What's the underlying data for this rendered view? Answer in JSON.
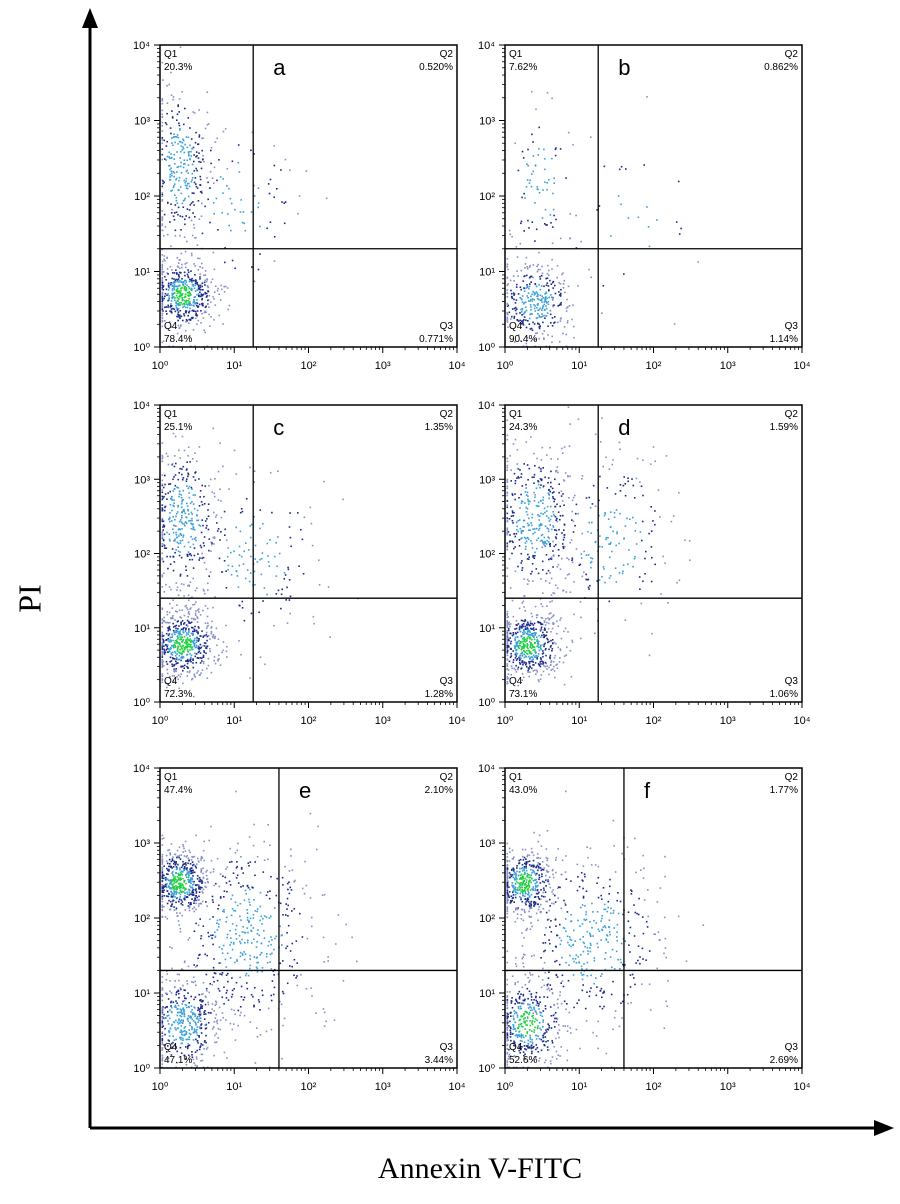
{
  "axis_labels": {
    "y": "PI",
    "x": "Annexin V-FITC"
  },
  "colors": {
    "density_low": "#1a2a8a",
    "density_mid": "#3aa0d8",
    "density_high": "#20d040",
    "sparse_dot": "#8890c8"
  },
  "chart_data": [
    {
      "type": "scatter",
      "panel_label": "a",
      "xscale": "log",
      "yscale": "log",
      "xlim": [
        1,
        10000
      ],
      "ylim": [
        1,
        10000
      ],
      "x_ticks": [
        "10⁰",
        "10¹",
        "10²",
        "10³",
        "10⁴"
      ],
      "y_ticks": [
        "10⁰",
        "10¹",
        "10²",
        "10³",
        "10⁴"
      ],
      "gate": {
        "x": 18,
        "y": 20
      },
      "quadrants": {
        "Q1": "20.3%",
        "Q2": "0.520%",
        "Q3": "0.771%",
        "Q4": "78.4%"
      },
      "quadrant_names": {
        "Q1": "Q1",
        "Q2": "Q2",
        "Q3": "Q3",
        "Q4": "Q4"
      },
      "populations": [
        {
          "x": 2,
          "y": 5,
          "n": 520,
          "sx": 0.22,
          "sy": 0.22,
          "hot": true
        },
        {
          "x": 1.8,
          "y": 250,
          "n": 300,
          "sx": 0.2,
          "sy": 0.55,
          "hot": false
        },
        {
          "x": 12,
          "y": 80,
          "n": 90,
          "sx": 0.4,
          "sy": 0.6,
          "hot": false
        }
      ]
    },
    {
      "type": "scatter",
      "panel_label": "b",
      "xscale": "log",
      "yscale": "log",
      "xlim": [
        1,
        10000
      ],
      "ylim": [
        1,
        10000
      ],
      "x_ticks": [
        "10⁰",
        "10¹",
        "10²",
        "10³",
        "10⁴"
      ],
      "y_ticks": [
        "10⁰",
        "10¹",
        "10²",
        "10³",
        "10⁴"
      ],
      "gate": {
        "x": 18,
        "y": 20
      },
      "quadrants": {
        "Q1": "7.62%",
        "Q2": "0.862%",
        "Q3": "1.14%",
        "Q4": "90.4%"
      },
      "quadrant_names": {
        "Q1": "Q1",
        "Q2": "Q2",
        "Q3": "Q3",
        "Q4": "Q4"
      },
      "populations": [
        {
          "x": 2.5,
          "y": 4,
          "n": 340,
          "sx": 0.25,
          "sy": 0.25,
          "hot": false
        },
        {
          "x": 3,
          "y": 150,
          "n": 90,
          "sx": 0.25,
          "sy": 0.55,
          "hot": false
        },
        {
          "x": 60,
          "y": 40,
          "n": 30,
          "sx": 0.55,
          "sy": 0.6,
          "hot": false
        }
      ]
    },
    {
      "type": "scatter",
      "panel_label": "c",
      "xscale": "log",
      "yscale": "log",
      "xlim": [
        1,
        10000
      ],
      "ylim": [
        1,
        10000
      ],
      "x_ticks": [
        "10⁰",
        "10¹",
        "10²",
        "10³",
        "10⁴"
      ],
      "y_ticks": [
        "10⁰",
        "10¹",
        "10²",
        "10³",
        "10⁴"
      ],
      "gate": {
        "x": 18,
        "y": 25
      },
      "quadrants": {
        "Q1": "25.1%",
        "Q2": "1.35%",
        "Q3": "1.28%",
        "Q4": "72.3%"
      },
      "quadrant_names": {
        "Q1": "Q1",
        "Q2": "Q2",
        "Q3": "Q3",
        "Q4": "Q4"
      },
      "populations": [
        {
          "x": 2,
          "y": 6,
          "n": 560,
          "sx": 0.22,
          "sy": 0.22,
          "hot": true
        },
        {
          "x": 2,
          "y": 300,
          "n": 380,
          "sx": 0.25,
          "sy": 0.5,
          "hot": false
        },
        {
          "x": 20,
          "y": 100,
          "n": 150,
          "sx": 0.45,
          "sy": 0.6,
          "hot": false
        }
      ]
    },
    {
      "type": "scatter",
      "panel_label": "d",
      "xscale": "log",
      "yscale": "log",
      "xlim": [
        1,
        10000
      ],
      "ylim": [
        1,
        10000
      ],
      "x_ticks": [
        "10⁰",
        "10¹",
        "10²",
        "10³",
        "10⁴"
      ],
      "y_ticks": [
        "10⁰",
        "10¹",
        "10²",
        "10³",
        "10⁴"
      ],
      "gate": {
        "x": 18,
        "y": 25
      },
      "quadrants": {
        "Q1": "24.3%",
        "Q2": "1.59%",
        "Q3": "1.06%",
        "Q4": "73.1%"
      },
      "quadrant_names": {
        "Q1": "Q1",
        "Q2": "Q2",
        "Q3": "Q3",
        "Q4": "Q4"
      },
      "populations": [
        {
          "x": 2,
          "y": 6,
          "n": 560,
          "sx": 0.22,
          "sy": 0.22,
          "hot": true
        },
        {
          "x": 2.5,
          "y": 300,
          "n": 420,
          "sx": 0.28,
          "sy": 0.5,
          "hot": false
        },
        {
          "x": 25,
          "y": 150,
          "n": 200,
          "sx": 0.45,
          "sy": 0.6,
          "hot": false
        }
      ]
    },
    {
      "type": "scatter",
      "panel_label": "e",
      "xscale": "log",
      "yscale": "log",
      "xlim": [
        1,
        10000
      ],
      "ylim": [
        1,
        10000
      ],
      "x_ticks": [
        "10⁰",
        "10¹",
        "10²",
        "10³",
        "10⁴"
      ],
      "y_ticks": [
        "10⁰",
        "10¹",
        "10²",
        "10³",
        "10⁴"
      ],
      "gate": {
        "x": 40,
        "y": 20
      },
      "quadrants": {
        "Q1": "47.4%",
        "Q2": "2.10%",
        "Q3": "3.44%",
        "Q4": "47.1%"
      },
      "quadrant_names": {
        "Q1": "Q1",
        "Q2": "Q2",
        "Q3": "Q3",
        "Q4": "Q4"
      },
      "populations": [
        {
          "x": 1.8,
          "y": 300,
          "n": 520,
          "sx": 0.2,
          "sy": 0.22,
          "hot": true
        },
        {
          "x": 2,
          "y": 4,
          "n": 420,
          "sx": 0.25,
          "sy": 0.3,
          "hot": false
        },
        {
          "x": 15,
          "y": 60,
          "n": 450,
          "sx": 0.5,
          "sy": 0.65,
          "hot": false
        }
      ]
    },
    {
      "type": "scatter",
      "panel_label": "f",
      "xscale": "log",
      "yscale": "log",
      "xlim": [
        1,
        10000
      ],
      "ylim": [
        1,
        10000
      ],
      "x_ticks": [
        "10⁰",
        "10¹",
        "10²",
        "10³",
        "10⁴"
      ],
      "y_ticks": [
        "10⁰",
        "10¹",
        "10²",
        "10³",
        "10⁴"
      ],
      "gate": {
        "x": 40,
        "y": 20
      },
      "quadrants": {
        "Q1": "43.0%",
        "Q2": "1.77%",
        "Q3": "2.69%",
        "Q4": "52.6%"
      },
      "quadrant_names": {
        "Q1": "Q1",
        "Q2": "Q2",
        "Q3": "Q3",
        "Q4": "Q4"
      },
      "populations": [
        {
          "x": 1.8,
          "y": 300,
          "n": 480,
          "sx": 0.2,
          "sy": 0.22,
          "hot": true
        },
        {
          "x": 2,
          "y": 4,
          "n": 420,
          "sx": 0.25,
          "sy": 0.3,
          "hot": true
        },
        {
          "x": 15,
          "y": 50,
          "n": 400,
          "sx": 0.5,
          "sy": 0.6,
          "hot": false
        }
      ]
    }
  ]
}
